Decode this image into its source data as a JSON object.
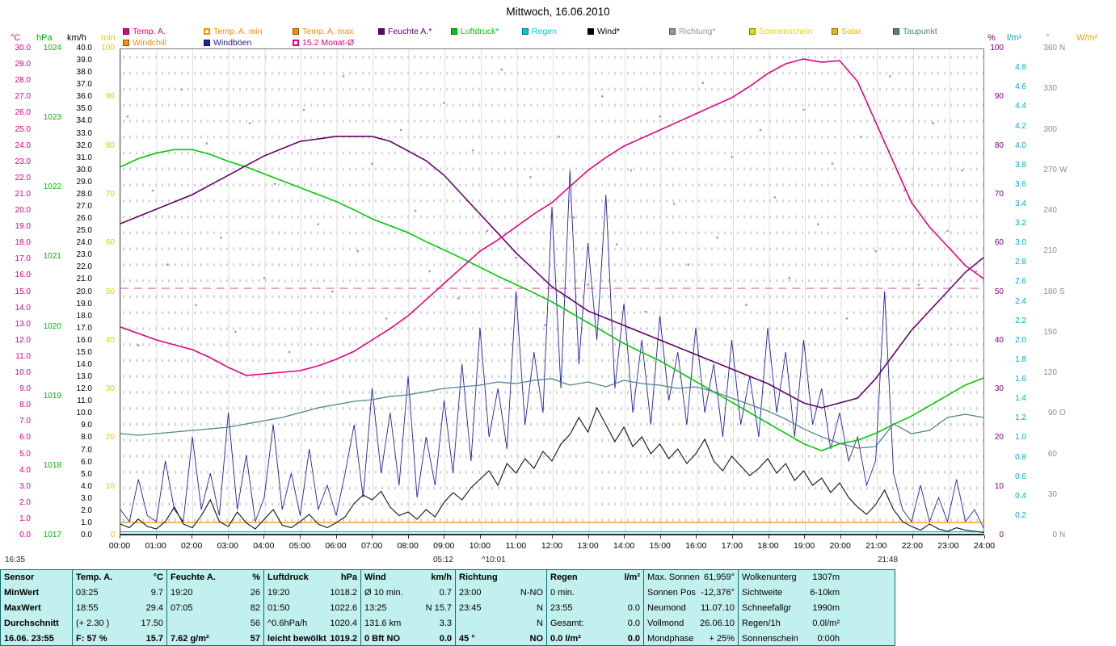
{
  "title": "Mittwoch, 16.06.2010",
  "legend": {
    "row1": [
      {
        "label": "Temp. A.",
        "color": "#E4007C",
        "swatch": "fill"
      },
      {
        "label": "Temp. A. min",
        "color": "#FF8C00",
        "swatch": "outline"
      },
      {
        "label": "Temp. A. max",
        "color": "#FF8C00",
        "swatch": "fill"
      },
      {
        "label": "Feuchte A.*",
        "color": "#64006A",
        "swatch": "fill"
      },
      {
        "label": "Luftdruck*",
        "color": "#00C800",
        "swatch": "fill"
      },
      {
        "label": "Regen",
        "color": "#00CCCC",
        "swatch": "fill"
      },
      {
        "label": "Wind*",
        "color": "#000000",
        "swatch": "fill"
      },
      {
        "label": "Richtung*",
        "color": "#969696",
        "swatch": "fill"
      },
      {
        "label": "Sonnenschein",
        "color": "#E0D800",
        "swatch": "fill"
      },
      {
        "label": "Solar",
        "color": "#E8B800",
        "swatch": "fill"
      },
      {
        "label": "Taupunkt",
        "color": "#4F8585",
        "swatch": "fill"
      }
    ],
    "row2": [
      {
        "label": "Windchill",
        "color": "#FF8C00",
        "swatch": "fill"
      },
      {
        "label": "Windböen",
        "color": "#2020A8",
        "swatch": "fill"
      },
      {
        "label": "15.2 Monat-Ø",
        "color": "#E4007C",
        "swatch": "outline"
      }
    ]
  },
  "footer_times": {
    "moonset": "16:35",
    "sunrise": "05:12",
    "moonrise": "^10:01",
    "sunset": "21:48"
  },
  "chart_data": {
    "type": "line",
    "title": "Mittwoch, 16.06.2010",
    "x_range": [
      0,
      24
    ],
    "x_tick_step": 1,
    "x_tick_format": "HH:00",
    "grid": true,
    "axes": {
      "tempC": {
        "unit": "°C",
        "color": "#E4007C",
        "min": 0,
        "max": 30,
        "tick_step": 1,
        "decimals": 1,
        "side": "left"
      },
      "hpa": {
        "unit": "hPa",
        "color": "#00B400",
        "min": 1017,
        "max": 1024,
        "tick_step": 1,
        "decimals": 0,
        "side": "left"
      },
      "kmh": {
        "unit": "km/h",
        "color": "#000000",
        "min": 0,
        "max": 40,
        "tick_step": 1,
        "decimals": 1,
        "side": "left"
      },
      "sunmin": {
        "unit": "min",
        "color": "#D8D000",
        "min": 0,
        "max": 100,
        "tick_step": 10,
        "decimals": 0,
        "side": "left"
      },
      "pct": {
        "unit": "%",
        "color": "#800080",
        "min": 0,
        "max": 100,
        "tick_step": 10,
        "decimals": 0,
        "side": "right"
      },
      "rain": {
        "unit": "l/m²",
        "color": "#00AEC8",
        "min": 0,
        "max": 5,
        "tick_step": 0.2,
        "tick_max": 4.8,
        "tick_min": 0.2,
        "decimals": 1,
        "side": "right"
      },
      "deg": {
        "unit": "°",
        "color": "#8C8C8C",
        "min": 0,
        "max": 360,
        "tick_step": 30,
        "decimals": 0,
        "side": "right",
        "letters": {
          "360": "N",
          "270": "W",
          "180": "S",
          "90": "O",
          "0": "N"
        }
      },
      "wm2": {
        "unit": "W/m²",
        "color": "#F0A000",
        "min": 0,
        "max": 1000,
        "side": "right",
        "ticks": false
      }
    },
    "series": [
      {
        "name": "richtung",
        "display": "Richtung",
        "type": "scatter",
        "axis": "deg",
        "color": "#A2A2A2",
        "points": [
          [
            0.2,
            310
          ],
          [
            0.5,
            140
          ],
          [
            0.9,
            255
          ],
          [
            1.3,
            200
          ],
          [
            1.7,
            330
          ],
          [
            2.1,
            170
          ],
          [
            2.4,
            290
          ],
          [
            2.8,
            220
          ],
          [
            3.2,
            150
          ],
          [
            3.6,
            305
          ],
          [
            4.0,
            190
          ],
          [
            4.3,
            260
          ],
          [
            4.7,
            135
          ],
          [
            5.1,
            315
          ],
          [
            5.5,
            230
          ],
          [
            5.9,
            180
          ],
          [
            6.2,
            340
          ],
          [
            6.6,
            210
          ],
          [
            7.0,
            275
          ],
          [
            7.4,
            160
          ],
          [
            7.8,
            300
          ],
          [
            8.2,
            240
          ],
          [
            8.6,
            195
          ],
          [
            9.0,
            320
          ],
          [
            9.4,
            175
          ],
          [
            9.8,
            285
          ],
          [
            10.2,
            225
          ],
          [
            10.6,
            345
          ],
          [
            11.0,
            205
          ],
          [
            11.4,
            265
          ],
          [
            11.8,
            155
          ],
          [
            12.2,
            295
          ],
          [
            12.6,
            235
          ],
          [
            13.0,
            185
          ],
          [
            13.4,
            325
          ],
          [
            13.8,
            215
          ],
          [
            14.2,
            270
          ],
          [
            14.6,
            165
          ],
          [
            15.0,
            310
          ],
          [
            15.4,
            245
          ],
          [
            15.8,
            200
          ],
          [
            16.2,
            335
          ],
          [
            16.6,
            220
          ],
          [
            17.0,
            280
          ],
          [
            17.4,
            170
          ],
          [
            17.8,
            300
          ],
          [
            18.2,
            250
          ],
          [
            18.6,
            190
          ],
          [
            19.0,
            315
          ],
          [
            19.4,
            230
          ],
          [
            19.8,
            275
          ],
          [
            20.2,
            160
          ],
          [
            20.6,
            295
          ],
          [
            21.0,
            210
          ],
          [
            21.4,
            340
          ],
          [
            21.8,
            255
          ],
          [
            22.2,
            185
          ],
          [
            22.6,
            305
          ],
          [
            23.0,
            225
          ],
          [
            23.4,
            270
          ],
          [
            23.8,
            195
          ]
        ]
      },
      {
        "name": "monats_mittel",
        "display": "15.2 Monat-Ø",
        "type": "line",
        "axis": "tempC",
        "color": "#EE79B5",
        "width": 1.4,
        "dash": "10 7",
        "x": [
          0,
          24
        ],
        "values": [
          15.2,
          15.2
        ]
      },
      {
        "name": "windboeen",
        "display": "Windböen",
        "type": "line",
        "axis": "kmh",
        "color": "#2020A8",
        "width": 0.9,
        "x_start": 0,
        "x_step": 0.25,
        "values": [
          2,
          1,
          4.5,
          1.5,
          1,
          6,
          2,
          1,
          8,
          2,
          5,
          1.5,
          10,
          2,
          6.5,
          1,
          3,
          9,
          2,
          5,
          1.5,
          7,
          2,
          4,
          1.5,
          5,
          9,
          3,
          12,
          5,
          10,
          4,
          13,
          3,
          8,
          4,
          11,
          5,
          14,
          6,
          17,
          8,
          12,
          7,
          20,
          9,
          15,
          10,
          27,
          12,
          30,
          14,
          24,
          16,
          28,
          12,
          19,
          10,
          16,
          9,
          18,
          11,
          15,
          9,
          17,
          10,
          14,
          8,
          16,
          9,
          13,
          8,
          17,
          10,
          15,
          8,
          16,
          9,
          12,
          7,
          10,
          6,
          8,
          4,
          6,
          20,
          5,
          2,
          1,
          4,
          1,
          3,
          1,
          4.5,
          1,
          2,
          0.5
        ]
      },
      {
        "name": "windchill",
        "display": "Windchill",
        "type": "line",
        "axis": "tempC",
        "color": "#E89000",
        "width": 1.2,
        "x": [
          0,
          24
        ],
        "values": [
          0.7,
          0.7
        ]
      },
      {
        "name": "regen",
        "display": "Regen",
        "type": "line",
        "axis": "rain",
        "color": "#00CCCC",
        "width": 1.4,
        "x": [
          0,
          24
        ],
        "values": [
          0.02,
          0.02
        ]
      },
      {
        "name": "luftdruck",
        "display": "Luftdruck",
        "type": "line",
        "axis": "hpa",
        "color": "#00C800",
        "width": 1.6,
        "x_start": 0,
        "x_step": 0.5,
        "values": [
          1022.3,
          1022.42,
          1022.5,
          1022.55,
          1022.55,
          1022.48,
          1022.38,
          1022.3,
          1022.2,
          1022.1,
          1022.0,
          1021.9,
          1021.8,
          1021.68,
          1021.55,
          1021.45,
          1021.35,
          1021.22,
          1021.1,
          1020.98,
          1020.85,
          1020.72,
          1020.6,
          1020.48,
          1020.35,
          1020.2,
          1020.05,
          1019.9,
          1019.75,
          1019.62,
          1019.5,
          1019.35,
          1019.2,
          1019.05,
          1018.9,
          1018.75,
          1018.6,
          1018.45,
          1018.3,
          1018.2,
          1018.3,
          1018.35,
          1018.45,
          1018.58,
          1018.7,
          1018.85,
          1019.0,
          1019.15,
          1019.25
        ]
      },
      {
        "name": "feuchte",
        "display": "Feuchte A.",
        "type": "line",
        "axis": "pct",
        "color": "#64006A",
        "width": 1.6,
        "x_start": 0,
        "x_step": 0.5,
        "values": [
          64,
          65.5,
          67,
          68.5,
          70,
          72,
          74,
          76,
          78,
          79.5,
          81,
          81.5,
          82,
          82,
          82,
          81,
          79,
          77,
          74,
          70,
          66,
          62,
          58,
          54.5,
          51,
          48.5,
          46,
          44.5,
          43,
          41.5,
          40,
          38.5,
          37,
          35.5,
          34,
          32.5,
          31,
          29,
          27,
          26,
          27,
          28,
          32,
          37,
          42,
          46,
          50,
          54,
          57
        ]
      },
      {
        "name": "taupunkt",
        "display": "Taupunkt",
        "type": "line",
        "axis": "tempC",
        "color": "#4F8585",
        "width": 1.3,
        "x_start": 0,
        "x_step": 0.5,
        "values": [
          6.2,
          6.1,
          6.2,
          6.3,
          6.4,
          6.5,
          6.6,
          6.8,
          7.0,
          7.2,
          7.5,
          7.8,
          8.0,
          8.2,
          8.3,
          8.5,
          8.6,
          8.8,
          9.0,
          9.1,
          9.2,
          9.4,
          9.3,
          9.5,
          9.6,
          9.2,
          9.4,
          9.1,
          9.5,
          9.3,
          9.2,
          9.0,
          9.1,
          8.8,
          8.4,
          8.0,
          7.6,
          7.1,
          6.5,
          6.0,
          5.6,
          5.3,
          5.4,
          6.8,
          6.2,
          6.4,
          7.2,
          7.4,
          7.2
        ]
      },
      {
        "name": "wind",
        "display": "Wind",
        "type": "line",
        "axis": "kmh",
        "color": "#101010",
        "width": 1.1,
        "x_start": 0,
        "x_step": 0.25,
        "values": [
          0.8,
          0.5,
          1.2,
          0.6,
          0.4,
          1.0,
          2.2,
          0.8,
          0.5,
          1.5,
          2.8,
          1.0,
          0.6,
          1.8,
          0.9,
          0.4,
          1.2,
          2.0,
          0.7,
          0.5,
          1.0,
          1.6,
          0.8,
          0.5,
          0.9,
          1.4,
          2.5,
          3.2,
          2.8,
          3.5,
          2.2,
          1.5,
          1.8,
          1.2,
          2.0,
          1.4,
          2.6,
          3.4,
          2.8,
          3.8,
          4.5,
          5.2,
          4.0,
          5.8,
          5.0,
          6.2,
          5.4,
          6.8,
          6.0,
          7.4,
          8.2,
          9.6,
          8.4,
          10.4,
          9.0,
          7.6,
          8.8,
          7.2,
          8.0,
          6.6,
          7.4,
          6.2,
          7.0,
          5.8,
          6.6,
          7.8,
          6.0,
          5.2,
          6.4,
          5.6,
          4.8,
          5.4,
          6.2,
          5.0,
          5.8,
          4.4,
          5.2,
          4.0,
          4.6,
          3.4,
          4.2,
          3.0,
          2.2,
          1.6,
          2.4,
          3.6,
          2.0,
          1.0,
          0.6,
          0.3,
          0.8,
          0.4,
          0.2,
          0.5,
          0.3,
          0.2,
          0.1
        ]
      },
      {
        "name": "temp",
        "display": "Temp. A.",
        "type": "line",
        "axis": "tempC",
        "color": "#E4007C",
        "width": 1.6,
        "x_start": 0,
        "x_step": 0.5,
        "values": [
          12.8,
          12.4,
          12.0,
          11.7,
          11.4,
          10.9,
          10.3,
          9.8,
          9.9,
          10.0,
          10.1,
          10.4,
          10.8,
          11.3,
          12.0,
          12.7,
          13.5,
          14.5,
          15.5,
          16.5,
          17.5,
          18.2,
          19.0,
          19.8,
          20.5,
          21.5,
          22.5,
          23.3,
          24.0,
          24.5,
          25.0,
          25.5,
          26.0,
          26.5,
          27.0,
          27.7,
          28.5,
          29.1,
          29.4,
          29.2,
          29.3,
          28.0,
          25.5,
          23.0,
          20.5,
          19.0,
          17.8,
          16.6,
          15.8
        ]
      }
    ]
  },
  "table": {
    "row_headers": [
      "Sensor",
      "MinWert",
      "MaxWert",
      "Durchschnitt",
      "16.06. 23:55"
    ],
    "columns": [
      {
        "header": "Temp. A.",
        "unit": "°C",
        "rows": [
          [
            "03:25",
            "9.7"
          ],
          [
            "18:55",
            "29.4"
          ],
          [
            "(+ 2.30 )",
            "17.50"
          ],
          [
            "F: 57 %",
            "15.7"
          ]
        ]
      },
      {
        "header": "Feuchte A.",
        "unit": "%",
        "rows": [
          [
            "19:20",
            "26"
          ],
          [
            "07:05",
            "82"
          ],
          [
            "",
            "56"
          ],
          [
            "7.62 g/m²",
            "57"
          ]
        ]
      },
      {
        "header": "Luftdruck",
        "unit": "hPa",
        "rows": [
          [
            "19:20",
            "1018.2"
          ],
          [
            "01:50",
            "1022.6"
          ],
          [
            "^0.6hPa/h",
            "1020.4"
          ],
          [
            "leicht bewölkt",
            "1019.2"
          ]
        ]
      },
      {
        "header": "Wind",
        "unit": "km/h",
        "rows": [
          [
            "Ø 10 min.",
            "0.7"
          ],
          [
            "13:25",
            "N 15.7"
          ],
          [
            "131.6 km",
            "3.3"
          ],
          [
            "0 Bft NO",
            "0.0"
          ]
        ]
      },
      {
        "header": "Richtung",
        "unit": "",
        "rows": [
          [
            "23:00",
            "N-NO"
          ],
          [
            "23:45",
            "N"
          ],
          [
            "",
            "N"
          ],
          [
            "45 °",
            "NO"
          ]
        ]
      },
      {
        "header": "Regen",
        "unit": "l/m²",
        "rows": [
          [
            "0 min.",
            ""
          ],
          [
            "23:55",
            "0.0"
          ],
          [
            "Gesamt:",
            "0.0"
          ],
          [
            "0.0 l/m²",
            "0.0"
          ]
        ]
      }
    ],
    "astro": [
      [
        "Max. Sonnen",
        "61,959°"
      ],
      [
        "Sonnen Pos",
        "-12,376°"
      ],
      [
        "Neumond",
        "11.07.10"
      ],
      [
        "Vollmond",
        "26.06.10"
      ],
      [
        "Mondphase",
        "+ 25%"
      ]
    ],
    "info": [
      [
        "Wolkenunterg",
        "1307m"
      ],
      [
        "Sichtweite",
        "6-10km"
      ],
      [
        "Schneefallgr",
        "1990m"
      ],
      [
        "Regen/1h",
        "0.0l/m²"
      ],
      [
        "Sonnenschein",
        "0:00h"
      ]
    ]
  }
}
